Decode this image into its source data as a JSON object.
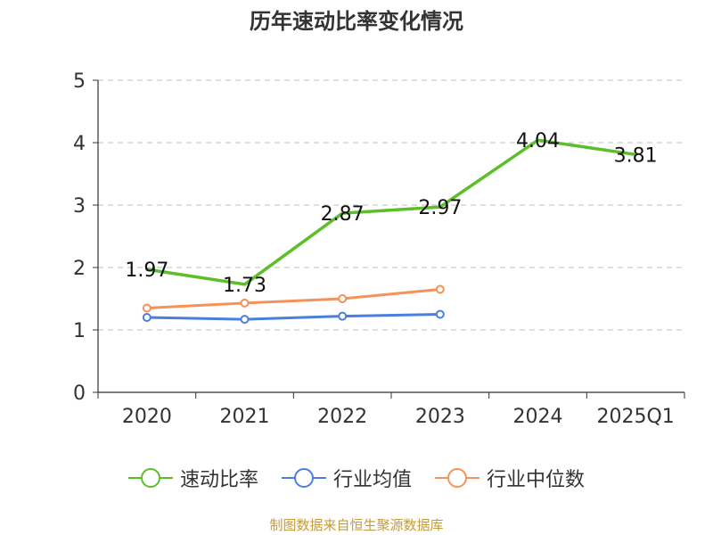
{
  "colors": {
    "series1": "#5cbf2a",
    "series2": "#4a7fe0",
    "series3": "#f5925a",
    "source": "#c59a3a",
    "grid": "#cccccc",
    "axis": "#333333"
  },
  "source_text": "制图数据来自恒生聚源数据库",
  "chart_data": {
    "type": "line",
    "title": "历年速动比率变化情况",
    "categories": [
      "2020",
      "2021",
      "2022",
      "2023",
      "2024",
      "2025Q1"
    ],
    "ylim": [
      0,
      5
    ],
    "yticks": [
      "0",
      "1",
      "2",
      "3",
      "4",
      "5"
    ],
    "grid": true,
    "legend_position": "bottom",
    "series": [
      {
        "name": "速动比率",
        "values": [
          1.97,
          1.73,
          2.87,
          2.97,
          4.04,
          3.81
        ],
        "labels": [
          "1.97",
          "1.73",
          "2.87",
          "2.97",
          "4.04",
          "3.81"
        ]
      },
      {
        "name": "行业均值",
        "values": [
          1.2,
          1.17,
          1.22,
          1.25,
          null,
          null
        ]
      },
      {
        "name": "行业中位数",
        "values": [
          1.35,
          1.43,
          1.5,
          1.65,
          null,
          null
        ]
      }
    ]
  }
}
